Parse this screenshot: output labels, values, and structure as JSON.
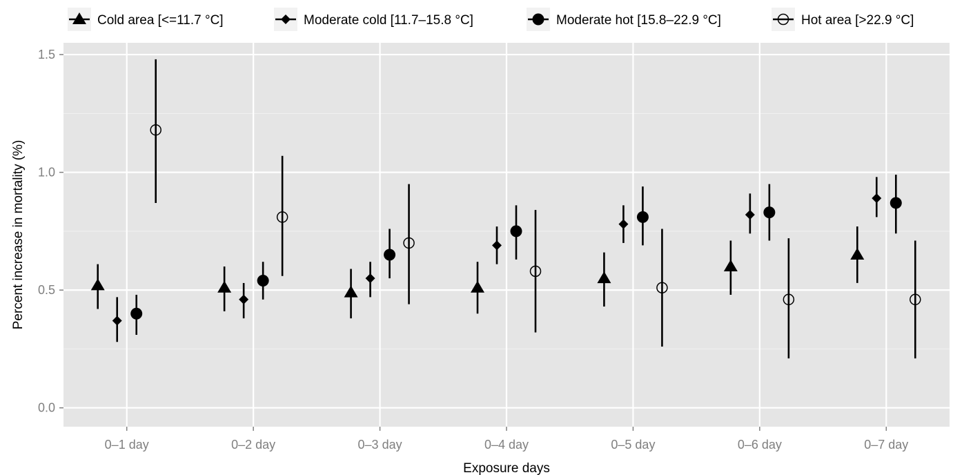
{
  "chart_data": {
    "type": "scatter",
    "subtype": "point-range",
    "title": "",
    "xlabel": "Exposure days",
    "ylabel": "Percent increase in mortality (%)",
    "categories": [
      "0–1 day",
      "0–2 day",
      "0–3 day",
      "0–4 day",
      "0–5 day",
      "0–6 day",
      "0–7 day"
    ],
    "ylim": [
      -0.08,
      1.55
    ],
    "yticks": [
      0.0,
      0.5,
      1.0,
      1.5
    ],
    "ytick_labels": [
      "0.0",
      "0.5",
      "1.0",
      "1.5"
    ],
    "grid": true,
    "legend_position": "top",
    "series": [
      {
        "name": "Cold area [<=11.7 °C]",
        "marker": "triangle",
        "values": [
          0.52,
          0.51,
          0.49,
          0.51,
          0.55,
          0.6,
          0.65
        ],
        "lower": [
          0.42,
          0.41,
          0.38,
          0.4,
          0.43,
          0.48,
          0.53
        ],
        "upper": [
          0.61,
          0.6,
          0.59,
          0.62,
          0.66,
          0.71,
          0.77
        ]
      },
      {
        "name": "Moderate cold [11.7–15.8 °C]",
        "marker": "diamond",
        "values": [
          0.37,
          0.46,
          0.55,
          0.69,
          0.78,
          0.82,
          0.89
        ],
        "lower": [
          0.28,
          0.38,
          0.47,
          0.61,
          0.7,
          0.74,
          0.81
        ],
        "upper": [
          0.47,
          0.53,
          0.62,
          0.77,
          0.86,
          0.91,
          0.98
        ]
      },
      {
        "name": "Moderate hot [15.8–22.9 °C]",
        "marker": "filled-circle",
        "values": [
          0.4,
          0.54,
          0.65,
          0.75,
          0.81,
          0.83,
          0.87
        ],
        "lower": [
          0.31,
          0.46,
          0.55,
          0.63,
          0.69,
          0.71,
          0.74
        ],
        "upper": [
          0.48,
          0.62,
          0.76,
          0.86,
          0.94,
          0.95,
          0.99
        ]
      },
      {
        "name": "Hot area [>22.9 °C]",
        "marker": "open-circle",
        "values": [
          1.18,
          0.81,
          0.7,
          0.58,
          0.51,
          0.46,
          0.46
        ],
        "lower": [
          0.87,
          0.56,
          0.44,
          0.32,
          0.26,
          0.21,
          0.21
        ],
        "upper": [
          1.48,
          1.07,
          0.95,
          0.84,
          0.76,
          0.72,
          0.71
        ]
      }
    ]
  }
}
